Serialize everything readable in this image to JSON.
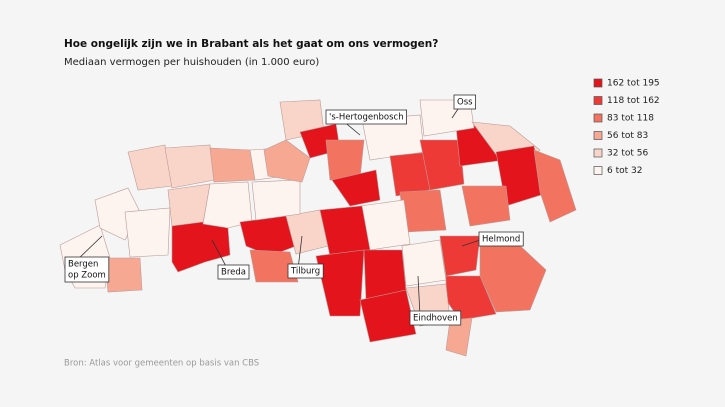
{
  "header": {
    "title": "Hoe ongelijk zijn we in Brabant als het gaat om ons vermogen?",
    "subtitle": "Mediaan vermogen per huishouden (in 1.000 euro)"
  },
  "legend": [
    {
      "label": "162 tot 195",
      "color": "#e3141c"
    },
    {
      "label": "118 tot 162",
      "color": "#ee3a37"
    },
    {
      "label": "83 tot 118",
      "color": "#f2735f"
    },
    {
      "label": "56 tot 83",
      "color": "#f6a893"
    },
    {
      "label": "32 tot 56",
      "color": "#f9d5c9"
    },
    {
      "label": "6 tot 32",
      "color": "#fdf3ef"
    }
  ],
  "cities": [
    {
      "lines": [
        "'s-Hertogenbosch"
      ]
    },
    {
      "lines": [
        "Oss"
      ]
    },
    {
      "lines": [
        "Bergen",
        "op Zoom"
      ]
    },
    {
      "lines": [
        "Breda"
      ]
    },
    {
      "lines": [
        "Tilburg"
      ]
    },
    {
      "lines": [
        "Helmond"
      ]
    },
    {
      "lines": [
        "Eindhoven"
      ]
    }
  ],
  "source": "Bron: Atlas voor gemeenten op basis van CBS"
}
